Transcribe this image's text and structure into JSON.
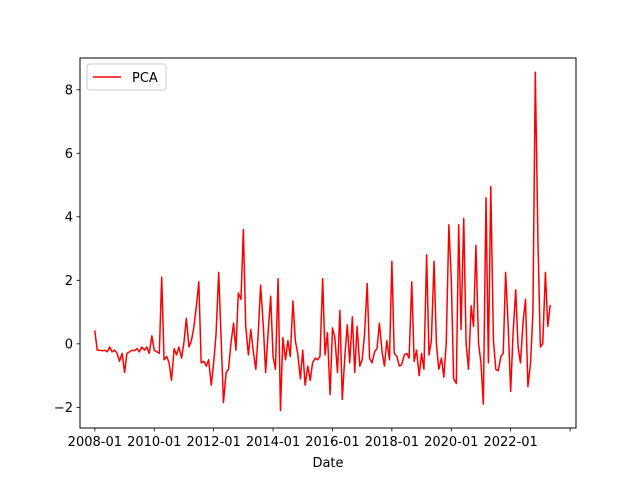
{
  "chart_data": {
    "type": "line",
    "xlabel": "Date",
    "ylabel": "",
    "title": "",
    "x_ticks": [
      "2008-01",
      "2010-01",
      "2012-01",
      "2014-01",
      "2016-01",
      "2018-01",
      "2020-01",
      "2022-01",
      ""
    ],
    "x_tick_values": [
      2008.0,
      2010.0,
      2012.0,
      2014.0,
      2016.0,
      2018.0,
      2020.0,
      2022.0,
      2024.0
    ],
    "xlim": [
      2007.5,
      2024.2
    ],
    "y_ticks": [
      -2,
      0,
      2,
      4,
      6,
      8
    ],
    "ylim": [
      -2.65,
      9.0
    ],
    "grid": false,
    "legend": {
      "position": "top-left",
      "entries": [
        "PCA"
      ]
    },
    "series": [
      {
        "name": "PCA",
        "color": "#ff0000",
        "points": [
          [
            2008.0,
            0.4
          ],
          [
            2008.08,
            -0.2
          ],
          [
            2008.17,
            -0.2
          ],
          [
            2008.25,
            -0.22
          ],
          [
            2008.33,
            -0.2
          ],
          [
            2008.42,
            -0.25
          ],
          [
            2008.5,
            -0.1
          ],
          [
            2008.58,
            -0.25
          ],
          [
            2008.67,
            -0.2
          ],
          [
            2008.75,
            -0.3
          ],
          [
            2008.83,
            -0.55
          ],
          [
            2008.92,
            -0.3
          ],
          [
            2009.0,
            -0.9
          ],
          [
            2009.08,
            -0.3
          ],
          [
            2009.17,
            -0.25
          ],
          [
            2009.25,
            -0.2
          ],
          [
            2009.33,
            -0.22
          ],
          [
            2009.42,
            -0.15
          ],
          [
            2009.5,
            -0.25
          ],
          [
            2009.58,
            -0.1
          ],
          [
            2009.67,
            -0.2
          ],
          [
            2009.75,
            -0.1
          ],
          [
            2009.83,
            -0.3
          ],
          [
            2009.92,
            0.25
          ],
          [
            2010.0,
            -0.2
          ],
          [
            2010.08,
            -0.25
          ],
          [
            2010.17,
            -0.3
          ],
          [
            2010.25,
            2.1
          ],
          [
            2010.33,
            -0.5
          ],
          [
            2010.42,
            -0.4
          ],
          [
            2010.5,
            -0.6
          ],
          [
            2010.58,
            -1.15
          ],
          [
            2010.67,
            -0.15
          ],
          [
            2010.75,
            -0.35
          ],
          [
            2010.83,
            -0.1
          ],
          [
            2010.92,
            -0.45
          ],
          [
            2011.0,
            0.05
          ],
          [
            2011.08,
            0.8
          ],
          [
            2011.17,
            -0.1
          ],
          [
            2011.25,
            0.1
          ],
          [
            2011.33,
            0.5
          ],
          [
            2011.42,
            1.2
          ],
          [
            2011.5,
            1.95
          ],
          [
            2011.58,
            -0.6
          ],
          [
            2011.67,
            -0.55
          ],
          [
            2011.75,
            -0.7
          ],
          [
            2011.83,
            -0.5
          ],
          [
            2011.92,
            -1.3
          ],
          [
            2012.0,
            -0.6
          ],
          [
            2012.08,
            0.3
          ],
          [
            2012.17,
            2.25
          ],
          [
            2012.25,
            0.2
          ],
          [
            2012.33,
            -1.85
          ],
          [
            2012.42,
            -0.9
          ],
          [
            2012.5,
            -0.8
          ],
          [
            2012.58,
            0.0
          ],
          [
            2012.67,
            0.65
          ],
          [
            2012.75,
            -0.2
          ],
          [
            2012.83,
            1.6
          ],
          [
            2012.92,
            1.4
          ],
          [
            2013.0,
            3.6
          ],
          [
            2013.08,
            0.55
          ],
          [
            2013.17,
            -0.35
          ],
          [
            2013.25,
            0.45
          ],
          [
            2013.33,
            -0.2
          ],
          [
            2013.42,
            -0.8
          ],
          [
            2013.5,
            0.3
          ],
          [
            2013.58,
            1.85
          ],
          [
            2013.67,
            0.6
          ],
          [
            2013.75,
            -0.9
          ],
          [
            2013.83,
            0.3
          ],
          [
            2013.92,
            1.5
          ],
          [
            2014.0,
            -0.4
          ],
          [
            2014.08,
            -0.8
          ],
          [
            2014.17,
            2.05
          ],
          [
            2014.25,
            -2.1
          ],
          [
            2014.33,
            0.2
          ],
          [
            2014.42,
            -0.5
          ],
          [
            2014.5,
            0.1
          ],
          [
            2014.58,
            -0.4
          ],
          [
            2014.67,
            1.35
          ],
          [
            2014.75,
            0.1
          ],
          [
            2014.83,
            -0.3
          ],
          [
            2014.92,
            -1.1
          ],
          [
            2015.0,
            -0.2
          ],
          [
            2015.08,
            -1.3
          ],
          [
            2015.17,
            -0.7
          ],
          [
            2015.25,
            -1.15
          ],
          [
            2015.33,
            -0.6
          ],
          [
            2015.42,
            -0.45
          ],
          [
            2015.5,
            -0.5
          ],
          [
            2015.58,
            -0.4
          ],
          [
            2015.67,
            2.05
          ],
          [
            2015.75,
            -0.35
          ],
          [
            2015.83,
            0.35
          ],
          [
            2015.92,
            -1.6
          ],
          [
            2016.0,
            0.5
          ],
          [
            2016.08,
            0.2
          ],
          [
            2016.17,
            -0.9
          ],
          [
            2016.25,
            1.05
          ],
          [
            2016.33,
            -1.75
          ],
          [
            2016.42,
            -0.35
          ],
          [
            2016.5,
            0.6
          ],
          [
            2016.58,
            -0.6
          ],
          [
            2016.67,
            0.85
          ],
          [
            2016.75,
            -0.9
          ],
          [
            2016.83,
            0.55
          ],
          [
            2016.92,
            -0.7
          ],
          [
            2017.0,
            -0.5
          ],
          [
            2017.08,
            0.3
          ],
          [
            2017.17,
            1.9
          ],
          [
            2017.25,
            -0.45
          ],
          [
            2017.33,
            -0.6
          ],
          [
            2017.42,
            -0.25
          ],
          [
            2017.5,
            -0.15
          ],
          [
            2017.58,
            0.65
          ],
          [
            2017.67,
            -0.25
          ],
          [
            2017.75,
            -0.7
          ],
          [
            2017.83,
            0.1
          ],
          [
            2017.92,
            -0.5
          ],
          [
            2018.0,
            2.6
          ],
          [
            2018.08,
            -0.3
          ],
          [
            2018.17,
            -0.4
          ],
          [
            2018.25,
            -0.7
          ],
          [
            2018.33,
            -0.65
          ],
          [
            2018.42,
            -0.35
          ],
          [
            2018.5,
            -0.3
          ],
          [
            2018.58,
            -0.45
          ],
          [
            2018.67,
            1.95
          ],
          [
            2018.75,
            -0.55
          ],
          [
            2018.83,
            -0.2
          ],
          [
            2018.92,
            -1.0
          ],
          [
            2019.0,
            -0.3
          ],
          [
            2019.08,
            -0.8
          ],
          [
            2019.17,
            2.8
          ],
          [
            2019.25,
            -0.35
          ],
          [
            2019.33,
            0.1
          ],
          [
            2019.42,
            2.6
          ],
          [
            2019.5,
            0.0
          ],
          [
            2019.58,
            -0.8
          ],
          [
            2019.67,
            -0.45
          ],
          [
            2019.75,
            -1.05
          ],
          [
            2019.83,
            0.0
          ],
          [
            2019.92,
            3.75
          ],
          [
            2020.0,
            2.05
          ],
          [
            2020.08,
            -1.1
          ],
          [
            2020.17,
            -1.25
          ],
          [
            2020.25,
            3.75
          ],
          [
            2020.33,
            0.45
          ],
          [
            2020.42,
            3.95
          ],
          [
            2020.5,
            0.0
          ],
          [
            2020.58,
            -0.8
          ],
          [
            2020.67,
            1.2
          ],
          [
            2020.75,
            0.55
          ],
          [
            2020.83,
            3.1
          ],
          [
            2020.92,
            0.0
          ],
          [
            2021.0,
            -0.6
          ],
          [
            2021.08,
            -1.9
          ],
          [
            2021.17,
            4.6
          ],
          [
            2021.25,
            -0.6
          ],
          [
            2021.33,
            4.95
          ],
          [
            2021.42,
            0.1
          ],
          [
            2021.5,
            -0.8
          ],
          [
            2021.58,
            -0.85
          ],
          [
            2021.67,
            -0.4
          ],
          [
            2021.75,
            -0.3
          ],
          [
            2021.83,
            2.25
          ],
          [
            2021.92,
            0.5
          ],
          [
            2022.0,
            -1.5
          ],
          [
            2022.08,
            0.3
          ],
          [
            2022.17,
            1.7
          ],
          [
            2022.25,
            -0.1
          ],
          [
            2022.33,
            -0.6
          ],
          [
            2022.42,
            0.7
          ],
          [
            2022.5,
            1.4
          ],
          [
            2022.58,
            -1.35
          ],
          [
            2022.67,
            -0.6
          ],
          [
            2022.75,
            1.0
          ],
          [
            2022.83,
            8.55
          ],
          [
            2022.92,
            3.2
          ],
          [
            2023.0,
            -0.1
          ],
          [
            2023.08,
            0.0
          ],
          [
            2023.17,
            2.25
          ],
          [
            2023.25,
            0.55
          ],
          [
            2023.33,
            1.2
          ]
        ]
      }
    ]
  }
}
